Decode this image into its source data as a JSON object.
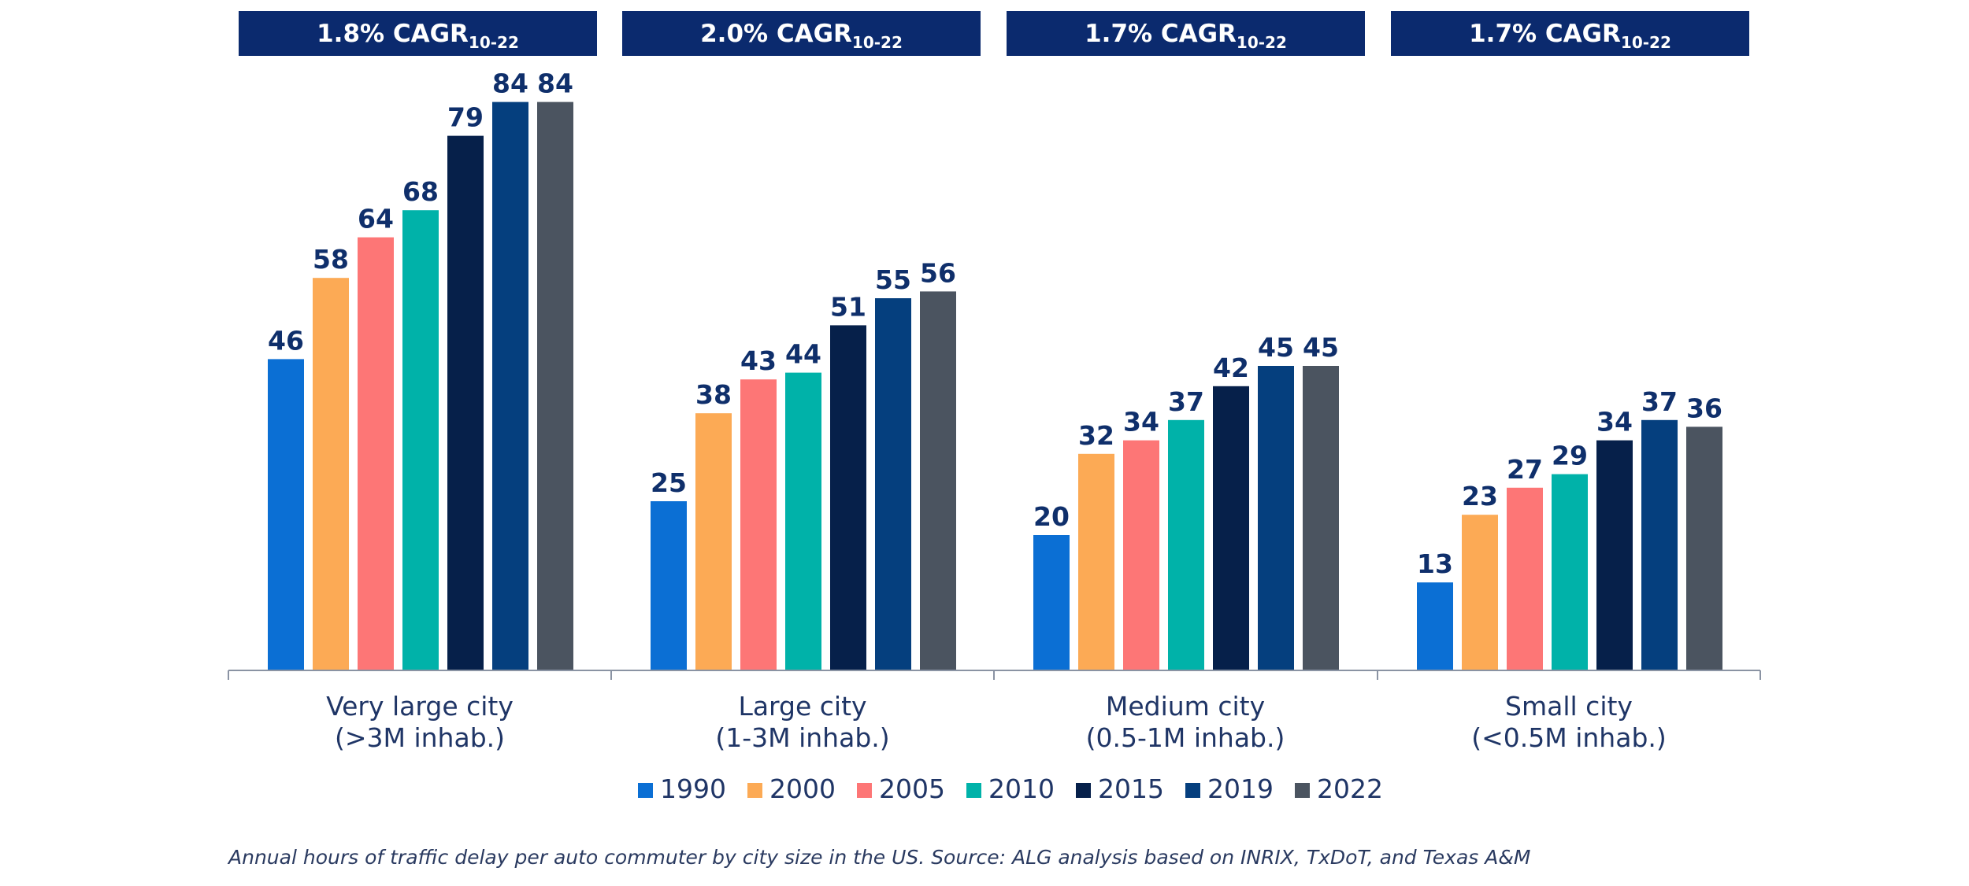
{
  "chart_data": {
    "type": "bar",
    "title": "",
    "xlabel": "",
    "ylabel": "",
    "ylim": [
      0,
      100
    ],
    "grid": false,
    "legend_placement": "bottom-center",
    "categories": [
      [
        "Very large city",
        "(>3M inhab.)"
      ],
      [
        "Large city",
        "(1-3M inhab.)"
      ],
      [
        "Medium city",
        "(0.5-1M inhab.)"
      ],
      [
        "Small city",
        "(<0.5M inhab.)"
      ]
    ],
    "headers": [
      {
        "main": "1.8% CAGR",
        "sub": "10-22"
      },
      {
        "main": "2.0% CAGR",
        "sub": "10-22"
      },
      {
        "main": "1.7% CAGR",
        "sub": "10-22"
      },
      {
        "main": "1.7% CAGR",
        "sub": "10-22"
      }
    ],
    "series": [
      {
        "name": "1990",
        "color": "#0b6fd4",
        "values": [
          46,
          25,
          20,
          13
        ]
      },
      {
        "name": "2000",
        "color": "#fcaa55",
        "values": [
          58,
          38,
          32,
          23
        ]
      },
      {
        "name": "2005",
        "color": "#fd7676",
        "values": [
          64,
          43,
          34,
          27
        ]
      },
      {
        "name": "2010",
        "color": "#00b2a9",
        "values": [
          68,
          44,
          37,
          29
        ]
      },
      {
        "name": "2015",
        "color": "#06204a",
        "values": [
          79,
          51,
          42,
          34
        ]
      },
      {
        "name": "2019",
        "color": "#053f7e",
        "values": [
          84,
          55,
          45,
          37
        ]
      },
      {
        "name": "2022",
        "color": "#4b5460",
        "values": [
          84,
          56,
          45,
          36
        ]
      }
    ],
    "caption": "Annual hours of traffic delay per auto commuter by city size in the US. Source: ALG analysis based on INRIX, TxDoT, and Texas A&M",
    "colors": {
      "header_bg": "#0b2a6e",
      "value_text": "#0f2f6b",
      "axis": "#8a93a3",
      "label_text": "#1f3566"
    }
  }
}
